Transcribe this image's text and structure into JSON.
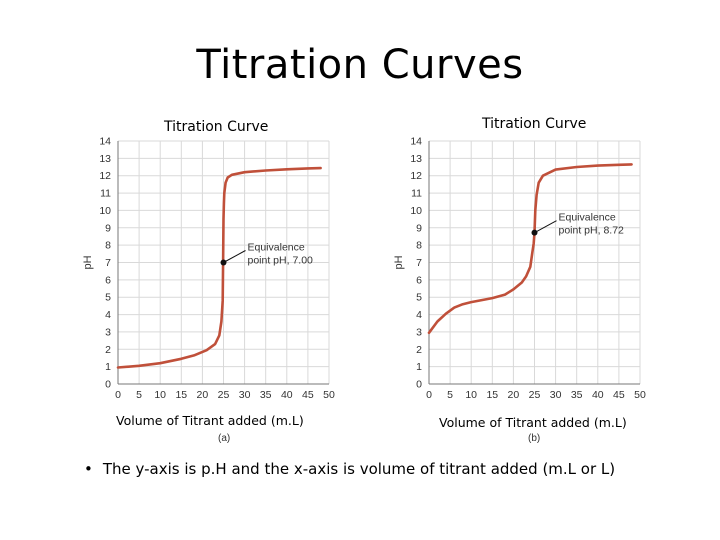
{
  "slide": {
    "title": "Titration Curves",
    "bullet": "The y-axis is p.H and the x-axis is volume of titrant added (m.L or L)",
    "bullet_symbol": "•"
  },
  "chart_data": [
    {
      "type": "line",
      "title": "Titration Curve",
      "xlabel": "Volume of Titrant added (m.L)",
      "ylabel": "pH",
      "panel_label": "(a)",
      "xlim": [
        0,
        50
      ],
      "ylim": [
        0,
        14
      ],
      "xticks": [
        0,
        5,
        10,
        15,
        20,
        25,
        30,
        35,
        40,
        45,
        50
      ],
      "yticks": [
        0,
        1,
        2,
        3,
        4,
        5,
        6,
        7,
        8,
        9,
        10,
        11,
        12,
        13,
        14
      ],
      "grid": true,
      "line_color": "#c0503a",
      "series": [
        {
          "x": [
            0,
            5,
            10,
            15,
            18,
            21,
            23,
            24,
            24.5,
            24.8,
            24.9,
            25,
            25.1,
            25.2,
            25.5,
            26,
            27,
            30,
            35,
            40,
            45,
            48
          ],
          "y": [
            0.95,
            1.05,
            1.2,
            1.45,
            1.65,
            1.95,
            2.3,
            2.8,
            3.6,
            4.8,
            7.0,
            9.5,
            10.4,
            11.0,
            11.6,
            11.9,
            12.05,
            12.2,
            12.3,
            12.37,
            12.42,
            12.44
          ]
        }
      ],
      "annotation": {
        "x": 25,
        "y": 7.0,
        "text": "Equivalence point pH, 7.00"
      }
    },
    {
      "type": "line",
      "title": "Titration Curve",
      "xlabel": "Volume of Titrant added (m.L)",
      "ylabel": "pH",
      "panel_label": "(b)",
      "xlim": [
        0,
        50
      ],
      "ylim": [
        0,
        14
      ],
      "xticks": [
        0,
        5,
        10,
        15,
        20,
        25,
        30,
        35,
        40,
        45,
        50
      ],
      "yticks": [
        0,
        1,
        2,
        3,
        4,
        5,
        6,
        7,
        8,
        9,
        10,
        11,
        12,
        13,
        14
      ],
      "grid": true,
      "line_color": "#c0503a",
      "series": [
        {
          "x": [
            0,
            2,
            4,
            6,
            8,
            10,
            15,
            18,
            20,
            22,
            23,
            24,
            24.5,
            24.8,
            25,
            25.2,
            25.5,
            26,
            27,
            30,
            35,
            40,
            45,
            48
          ],
          "y": [
            2.95,
            3.6,
            4.05,
            4.4,
            4.6,
            4.72,
            4.95,
            5.15,
            5.45,
            5.85,
            6.2,
            6.75,
            7.6,
            8.1,
            8.72,
            10.0,
            10.9,
            11.6,
            12.0,
            12.35,
            12.5,
            12.58,
            12.63,
            12.65
          ]
        }
      ],
      "annotation": {
        "x": 25,
        "y": 8.72,
        "text": "Equivalence point pH, 8.72"
      }
    }
  ]
}
